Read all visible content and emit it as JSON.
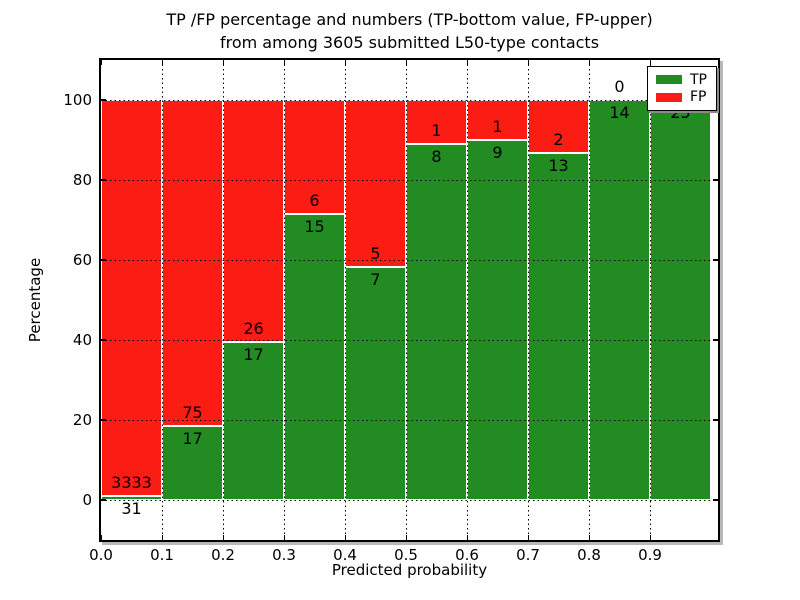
{
  "title": {
    "line1": "TP /FP percentage and numbers (TP-bottom value, FP-upper)",
    "line2": "from among 3605 submitted L50-type contacts"
  },
  "axes": {
    "xlabel": "Predicted probability",
    "ylabel": "Percentage",
    "xtick_labels": [
      "0.0",
      "0.1",
      "0.2",
      "0.3",
      "0.4",
      "0.5",
      "0.6",
      "0.7",
      "0.8",
      "0.9"
    ],
    "ytick_labels": [
      "0",
      "20",
      "40",
      "60",
      "80",
      "100"
    ]
  },
  "legend": {
    "position": "upper-right",
    "entries": [
      {
        "name": "tp",
        "label": "TP",
        "color": "#228B22"
      },
      {
        "name": "fp",
        "label": "FP",
        "color": "#FB1C13"
      }
    ]
  },
  "colors": {
    "tp": "#228B22",
    "fp": "#FB1C13",
    "grid": "#000000",
    "background": "#FFFFFF"
  },
  "chart_data": {
    "type": "bar",
    "stacked": true,
    "normalized_to_percent": true,
    "title": "TP /FP percentage and numbers (TP-bottom value, FP-upper) from among 3605 submitted L50-type contacts",
    "xlabel": "Predicted probability",
    "ylabel": "Percentage",
    "xlim": [
      0.0,
      1.01
    ],
    "ylim": [
      -10,
      110
    ],
    "grid": true,
    "legend_position": "upper right",
    "total_contacts": 3605,
    "bin_width": 0.1,
    "bins": [
      {
        "x_start": 0.0,
        "x_end": 0.1,
        "tp": 31,
        "fp": 3333
      },
      {
        "x_start": 0.1,
        "x_end": 0.2,
        "tp": 17,
        "fp": 75
      },
      {
        "x_start": 0.2,
        "x_end": 0.3,
        "tp": 17,
        "fp": 26
      },
      {
        "x_start": 0.3,
        "x_end": 0.4,
        "tp": 15,
        "fp": 6
      },
      {
        "x_start": 0.4,
        "x_end": 0.5,
        "tp": 7,
        "fp": 5
      },
      {
        "x_start": 0.5,
        "x_end": 0.6,
        "tp": 8,
        "fp": 1
      },
      {
        "x_start": 0.6,
        "x_end": 0.7,
        "tp": 9,
        "fp": 1
      },
      {
        "x_start": 0.7,
        "x_end": 0.8,
        "tp": 13,
        "fp": 2
      },
      {
        "x_start": 0.8,
        "x_end": 0.9,
        "tp": 14,
        "fp": 0
      },
      {
        "x_start": 0.9,
        "x_end": 1.0,
        "tp": 25,
        "fp": 0
      }
    ],
    "series": [
      {
        "name": "TP",
        "color": "#228B22",
        "values_pct": [
          0.92,
          18.48,
          39.53,
          71.43,
          58.33,
          88.89,
          90.0,
          86.67,
          100.0,
          100.0
        ]
      },
      {
        "name": "FP",
        "color": "#FB1C13",
        "values_pct": [
          99.08,
          81.52,
          60.47,
          28.57,
          41.67,
          11.11,
          10.0,
          13.33,
          0.0,
          0.0
        ]
      }
    ]
  }
}
